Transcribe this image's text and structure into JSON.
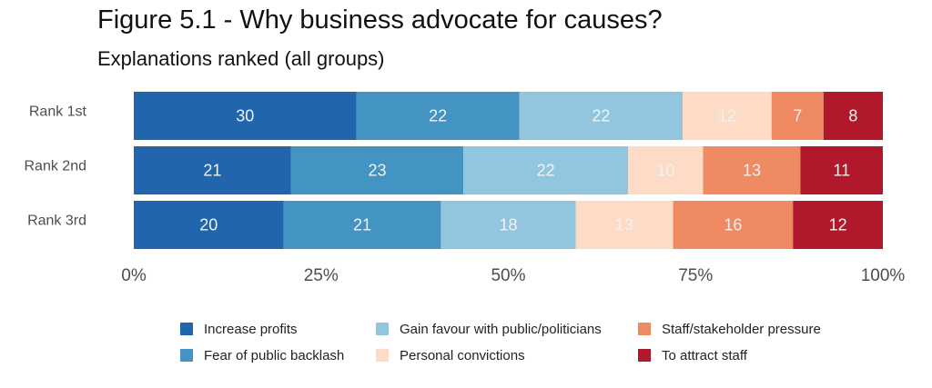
{
  "title": "Figure 5.1 - Why business advocate for causes?",
  "subtitle": "Explanations ranked (all groups)",
  "chart_data": {
    "type": "bar",
    "orientation": "horizontal",
    "stacked": true,
    "normalized": true,
    "categories": [
      "Rank 1st",
      "Rank 2nd",
      "Rank 3rd"
    ],
    "series": [
      {
        "name": "Increase profits",
        "color": "#2166ac",
        "values": [
          30,
          21,
          20
        ]
      },
      {
        "name": "Fear of public backlash",
        "color": "#4393c3",
        "values": [
          22,
          23,
          21
        ]
      },
      {
        "name": "Gain favour with public/politicians",
        "color": "#92c5de",
        "values": [
          22,
          22,
          18
        ]
      },
      {
        "name": "Personal convictions",
        "color": "#fddbc7",
        "values": [
          12,
          10,
          13
        ]
      },
      {
        "name": "Staff/stakeholder pressure",
        "color": "#ef8a62",
        "values": [
          7,
          13,
          16
        ]
      },
      {
        "name": "To attract staff",
        "color": "#b2182b",
        "values": [
          8,
          11,
          12
        ]
      }
    ],
    "x_ticks": [
      "0%",
      "25%",
      "50%",
      "75%",
      "100%"
    ],
    "xlim": [
      0,
      100
    ],
    "grid": false,
    "legend_position": "bottom"
  }
}
